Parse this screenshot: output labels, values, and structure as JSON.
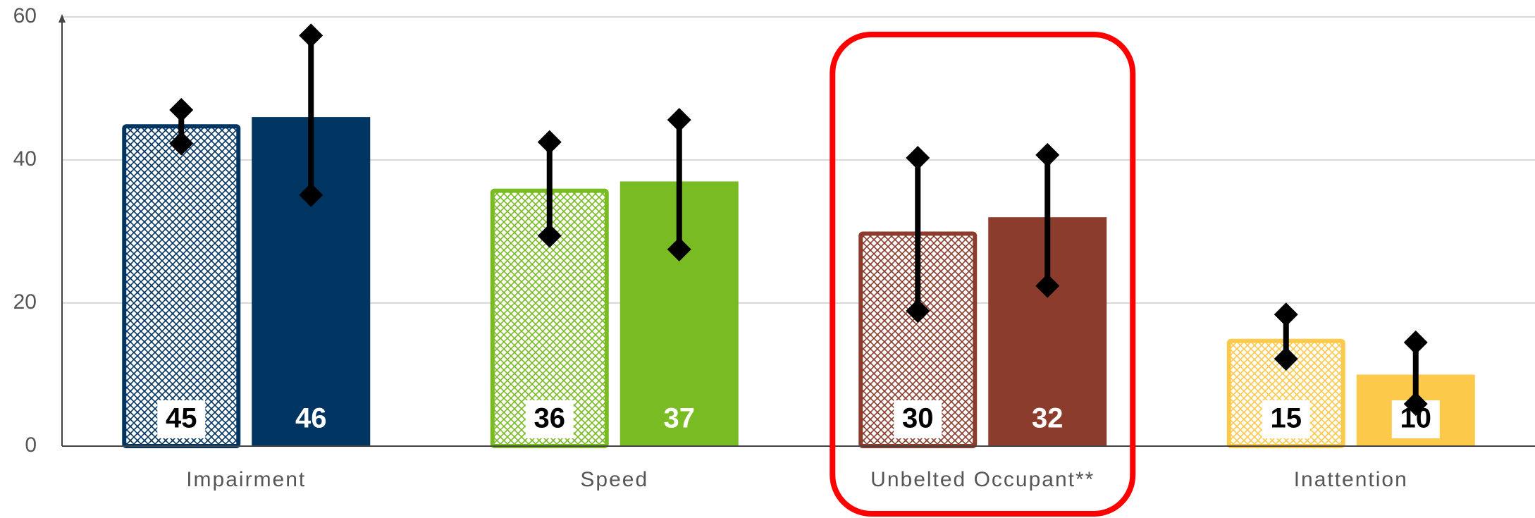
{
  "chart_data": {
    "type": "bar",
    "categories": [
      "Impairment",
      "Speed",
      "Unbelted Occupant**",
      "Inattention"
    ],
    "colors": [
      "#003461",
      "#78bb23",
      "#8b3c2c",
      "#fdc94a"
    ],
    "series": [
      {
        "pattern": "hatched",
        "values": [
          45,
          36,
          30,
          15
        ],
        "low": [
          42.3,
          29.4,
          18.9,
          12.2
        ],
        "high": [
          47,
          42.5,
          40.3,
          18.4
        ]
      },
      {
        "pattern": "solid",
        "values": [
          46,
          37,
          32,
          10
        ],
        "low": [
          35.1,
          27.5,
          22.4,
          5.9
        ],
        "high": [
          57.4,
          45.6,
          40.7,
          14.5
        ]
      }
    ],
    "highlight_category": 2,
    "ylim": [
      0,
      60
    ],
    "yticks": [
      0,
      20,
      40,
      60
    ],
    "grid": true
  }
}
